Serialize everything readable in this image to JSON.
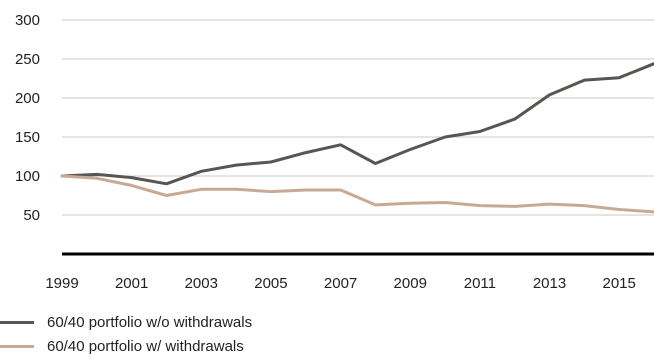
{
  "chart_data": {
    "type": "line",
    "title": "",
    "xlabel": "",
    "ylabel": "",
    "x": [
      1999,
      2000,
      2001,
      2002,
      2003,
      2004,
      2005,
      2006,
      2007,
      2008,
      2009,
      2010,
      2011,
      2012,
      2013,
      2014,
      2015,
      2016
    ],
    "xlim": [
      1999,
      2016
    ],
    "ylim": [
      0,
      300
    ],
    "x_ticks": [
      "1999",
      "2001",
      "2003",
      "2005",
      "2007",
      "2009",
      "2011",
      "2013",
      "2015"
    ],
    "y_ticks": [
      "50",
      "100",
      "150",
      "200",
      "250",
      "300"
    ],
    "grid": "horizontal",
    "legend_position": "bottom-left",
    "series": [
      {
        "name": "60/40 portfolio w/o withdrawals",
        "color": "#5a5550",
        "values": [
          100,
          102,
          98,
          90,
          106,
          114,
          118,
          130,
          140,
          116,
          134,
          150,
          157,
          173,
          204,
          223,
          226,
          244
        ]
      },
      {
        "name": "60/40 portfolio w/ withdrawals",
        "color": "#c8a993",
        "values": [
          100,
          97,
          88,
          75,
          83,
          83,
          80,
          82,
          82,
          63,
          65,
          66,
          62,
          61,
          64,
          62,
          57,
          54
        ]
      }
    ]
  }
}
